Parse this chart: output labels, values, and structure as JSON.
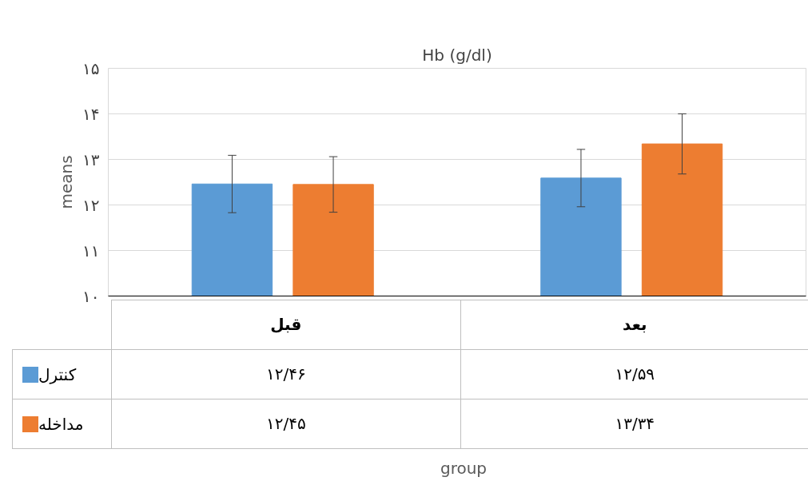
{
  "chart_data": {
    "type": "bar",
    "title": "Hb (g/dl)",
    "annotations": [
      "group"
    ],
    "legend": "bottom left",
    "ylabel": "means",
    "categories": [
      "قبل",
      "بعد"
    ],
    "series": [
      {
        "name": "کنترل",
        "color": "#5b9bd5",
        "values": [
          12.46,
          12.59
        ],
        "errors": [
          0.63,
          0.63
        ],
        "value_labels": [
          "۱۲/۴۶",
          "۱۲/۵۹"
        ]
      },
      {
        "name": "مداخله",
        "color": "#ed7d31",
        "values": [
          12.45,
          13.34
        ],
        "errors": [
          0.61,
          0.66
        ],
        "value_labels": [
          "۱۲/۴۵",
          "۱۳/۳۴"
        ]
      }
    ],
    "ylim": [
      10,
      15
    ],
    "yticks": [
      {
        "value": 10,
        "label": "۱۰"
      },
      {
        "value": 11,
        "label": "۱۱"
      },
      {
        "value": 12,
        "label": "۱۲"
      },
      {
        "value": 13,
        "label": "۱۳"
      },
      {
        "value": 14,
        "label": "۱۴"
      },
      {
        "value": 15,
        "label": "۱۵"
      }
    ],
    "grid": "y"
  }
}
